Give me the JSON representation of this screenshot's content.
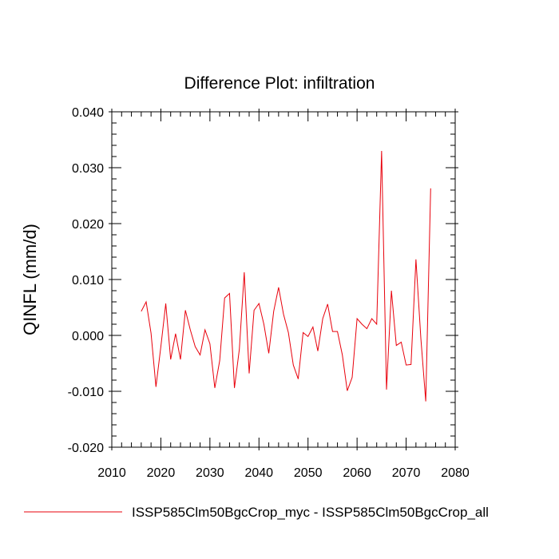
{
  "chart_data": {
    "type": "line",
    "title": "Difference Plot: infiltration",
    "xlabel": "",
    "ylabel": "QINFL  (mm/d)",
    "xlim": [
      2010,
      2080
    ],
    "ylim": [
      -0.02,
      0.04
    ],
    "xticks": [
      2010,
      2020,
      2030,
      2040,
      2050,
      2060,
      2070,
      2080
    ],
    "xtick_labels": [
      "2010",
      "2020",
      "2030",
      "2040",
      "2050",
      "2060",
      "2070",
      "2080"
    ],
    "yticks": [
      -0.02,
      -0.01,
      0.0,
      0.01,
      0.02,
      0.03,
      0.04
    ],
    "ytick_labels": [
      "-0.020",
      "-0.010",
      "0.000",
      "0.010",
      "0.020",
      "0.030",
      "0.040"
    ],
    "grid": false,
    "legend_position": "bottom",
    "series": [
      {
        "name": "ISSP585Clm50BgcCrop_myc - ISSP585Clm50BgcCrop_all",
        "color": "#e8000b",
        "x": [
          2016,
          2017,
          2018,
          2019,
          2020,
          2021,
          2022,
          2023,
          2024,
          2025,
          2026,
          2027,
          2028,
          2029,
          2030,
          2031,
          2032,
          2033,
          2034,
          2035,
          2036,
          2037,
          2038,
          2039,
          2040,
          2041,
          2042,
          2043,
          2044,
          2045,
          2046,
          2047,
          2048,
          2049,
          2050,
          2051,
          2052,
          2053,
          2054,
          2055,
          2056,
          2057,
          2058,
          2059,
          2060,
          2061,
          2062,
          2063,
          2064,
          2065,
          2066,
          2067,
          2068,
          2069,
          2070,
          2071,
          2072,
          2073,
          2074,
          2075
        ],
        "y": [
          0.0043,
          0.006,
          0.0004,
          -0.0092,
          -0.002,
          0.0057,
          -0.0043,
          0.0003,
          -0.0043,
          0.0045,
          0.001,
          -0.002,
          -0.0035,
          0.001,
          -0.0015,
          -0.0094,
          -0.0045,
          0.0067,
          0.0075,
          -0.0094,
          -0.0025,
          0.0113,
          -0.0068,
          0.0045,
          0.0057,
          0.002,
          -0.0032,
          0.0043,
          0.0086,
          0.0038,
          0.0005,
          -0.0053,
          -0.0078,
          0.0005,
          -0.0002,
          0.0015,
          -0.0028,
          0.003,
          0.0056,
          0.0007,
          0.0007,
          -0.0035,
          -0.0099,
          -0.0075,
          0.003,
          0.002,
          0.0012,
          0.003,
          0.002,
          0.033,
          -0.0097,
          0.008,
          -0.0018,
          -0.0012,
          -0.0053,
          -0.0052,
          0.0136,
          -0.0005,
          -0.0118,
          0.0263
        ]
      }
    ]
  }
}
